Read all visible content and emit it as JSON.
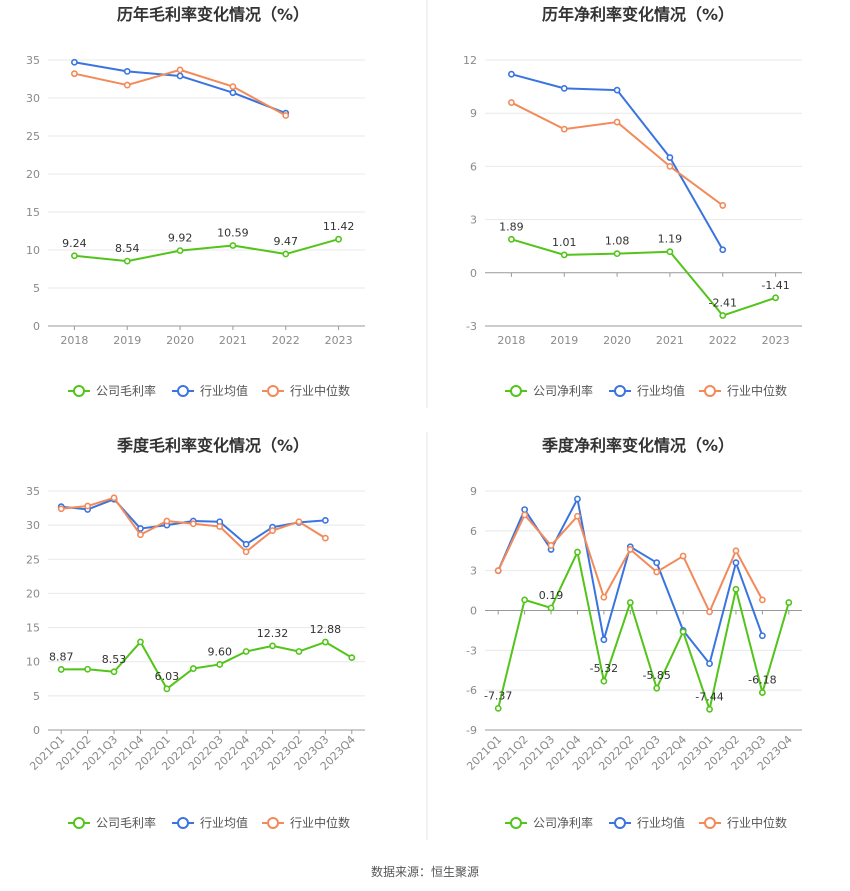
{
  "source": "数据来源：恒生聚源",
  "legend_colors": {
    "company": "#52c41a",
    "industry_avg": "#3a74e0",
    "industry_median": "#f28a5a"
  },
  "chart_data": [
    {
      "type": "line",
      "title": "历年毛利率变化情况（%）",
      "categories": [
        "2018",
        "2019",
        "2020",
        "2021",
        "2022",
        "2023"
      ],
      "ylim": [
        0,
        35
      ],
      "yticks": [
        0,
        5,
        10,
        15,
        20,
        25,
        30,
        35
      ],
      "grid": true,
      "legend_position": "bottom",
      "series": [
        {
          "name": "公司毛利率",
          "key": "company",
          "values": [
            9.24,
            8.54,
            9.92,
            10.59,
            9.47,
            11.42
          ],
          "labels": [
            "9.24",
            "8.54",
            "9.92",
            "10.59",
            "9.47",
            "11.42"
          ]
        },
        {
          "name": "行业均值",
          "key": "industry_avg",
          "values": [
            34.7,
            33.5,
            32.9,
            30.7,
            28.0,
            null
          ]
        },
        {
          "name": "行业中位数",
          "key": "industry_median",
          "values": [
            33.2,
            31.7,
            33.7,
            31.5,
            27.7,
            null
          ]
        }
      ]
    },
    {
      "type": "line",
      "title": "历年净利率变化情况（%）",
      "categories": [
        "2018",
        "2019",
        "2020",
        "2021",
        "2022",
        "2023"
      ],
      "ylim": [
        -3,
        12
      ],
      "yticks": [
        -3,
        0,
        3,
        6,
        9,
        12
      ],
      "grid": true,
      "legend_position": "bottom",
      "series": [
        {
          "name": "公司净利率",
          "key": "company",
          "values": [
            1.89,
            1.01,
            1.08,
            1.19,
            -2.41,
            -1.41
          ],
          "labels": [
            "1.89",
            "1.01",
            "1.08",
            "1.19",
            "-2.41",
            "-1.41"
          ]
        },
        {
          "name": "行业均值",
          "key": "industry_avg",
          "values": [
            11.2,
            10.4,
            10.3,
            6.5,
            1.3,
            null
          ]
        },
        {
          "name": "行业中位数",
          "key": "industry_median",
          "values": [
            9.6,
            8.1,
            8.5,
            6.0,
            3.8,
            null
          ]
        }
      ]
    },
    {
      "type": "line",
      "title": "季度毛利率变化情况（%）",
      "categories": [
        "2021Q1",
        "2021Q2",
        "2021Q3",
        "2021Q4",
        "2022Q1",
        "2022Q2",
        "2022Q3",
        "2022Q4",
        "2023Q1",
        "2023Q2",
        "2023Q3",
        "2023Q4"
      ],
      "ylim": [
        0,
        35
      ],
      "yticks": [
        0,
        5,
        10,
        15,
        20,
        25,
        30,
        35
      ],
      "grid": true,
      "legend_position": "bottom",
      "series": [
        {
          "name": "公司毛利率",
          "key": "company",
          "values": [
            8.87,
            8.9,
            8.53,
            12.9,
            6.03,
            9.0,
            9.6,
            11.5,
            12.32,
            11.5,
            12.88,
            10.6
          ],
          "labels": [
            "8.87",
            "",
            "8.53",
            "",
            "6.03",
            "",
            "9.60",
            "",
            "12.32",
            "",
            "12.88",
            ""
          ]
        },
        {
          "name": "行业均值",
          "key": "industry_avg",
          "values": [
            32.7,
            32.3,
            33.8,
            29.5,
            30.0,
            30.6,
            30.5,
            27.2,
            29.7,
            30.4,
            30.7,
            null
          ]
        },
        {
          "name": "行业中位数",
          "key": "industry_median",
          "values": [
            32.4,
            32.8,
            34.0,
            28.6,
            30.6,
            30.2,
            29.8,
            26.1,
            29.2,
            30.5,
            28.1,
            null
          ]
        }
      ]
    },
    {
      "type": "line",
      "title": "季度净利率变化情况（%）",
      "categories": [
        "2021Q1",
        "2021Q2",
        "2021Q3",
        "2021Q4",
        "2022Q1",
        "2022Q2",
        "2022Q3",
        "2022Q4",
        "2023Q1",
        "2023Q2",
        "2023Q3",
        "2023Q4"
      ],
      "ylim": [
        -9,
        9
      ],
      "yticks": [
        -9,
        -6,
        -3,
        0,
        3,
        6,
        9
      ],
      "grid": true,
      "legend_position": "bottom",
      "series": [
        {
          "name": "公司净利率",
          "key": "company",
          "values": [
            -7.37,
            0.8,
            0.19,
            4.4,
            -5.32,
            0.6,
            -5.85,
            -1.6,
            -7.44,
            1.6,
            -6.18,
            0.6
          ],
          "labels": [
            "-7.37",
            "",
            "0.19",
            "",
            "-5.32",
            "",
            "-5.85",
            "",
            "-7.44",
            "",
            "-6.18",
            ""
          ]
        },
        {
          "name": "行业均值",
          "key": "industry_avg",
          "values": [
            3.0,
            7.6,
            4.6,
            8.4,
            -2.2,
            4.8,
            3.6,
            -1.5,
            -4.0,
            3.6,
            -1.9,
            null
          ]
        },
        {
          "name": "行业中位数",
          "key": "industry_median",
          "values": [
            3.0,
            7.2,
            4.9,
            7.1,
            1.0,
            4.6,
            2.9,
            4.1,
            -0.1,
            4.5,
            0.8,
            null
          ]
        }
      ]
    }
  ]
}
